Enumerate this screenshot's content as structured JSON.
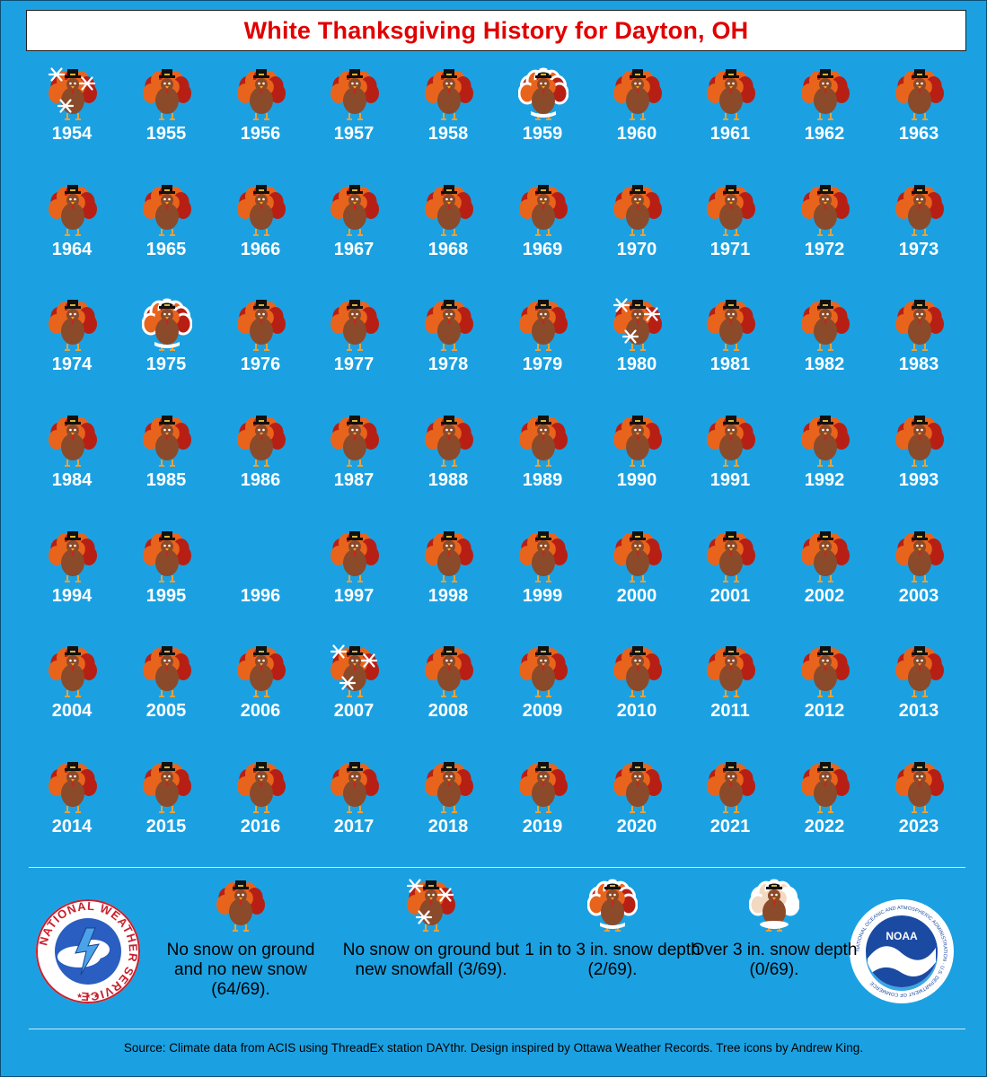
{
  "title": "White Thanksgiving History for Dayton, OH",
  "colors": {
    "background": "#1ba1e2",
    "title": "#e00000",
    "turkey_body": "#8b4a2a",
    "feather_red": "#b81f14",
    "feather_orange": "#e8641c",
    "snow_white": "#ffffff"
  },
  "chart_data": {
    "type": "table",
    "title": "White Thanksgiving History for Dayton, OH",
    "categories": {
      "none": "No snow on ground and no new snow",
      "new_snow": "No snow on ground but new snowfall",
      "depth_1_3": "1 in to 3 in. snow depth",
      "depth_over_3": "Over 3 in. snow depth"
    },
    "years": [
      {
        "year": "1954",
        "category": "new_snow"
      },
      {
        "year": "1955",
        "category": "none"
      },
      {
        "year": "1956",
        "category": "none"
      },
      {
        "year": "1957",
        "category": "none"
      },
      {
        "year": "1958",
        "category": "none"
      },
      {
        "year": "1959",
        "category": "depth_1_3"
      },
      {
        "year": "1960",
        "category": "none"
      },
      {
        "year": "1961",
        "category": "none"
      },
      {
        "year": "1962",
        "category": "none"
      },
      {
        "year": "1963",
        "category": "none"
      },
      {
        "year": "1964",
        "category": "none"
      },
      {
        "year": "1965",
        "category": "none"
      },
      {
        "year": "1966",
        "category": "none"
      },
      {
        "year": "1967",
        "category": "none"
      },
      {
        "year": "1968",
        "category": "none"
      },
      {
        "year": "1969",
        "category": "none"
      },
      {
        "year": "1970",
        "category": "none"
      },
      {
        "year": "1971",
        "category": "none"
      },
      {
        "year": "1972",
        "category": "none"
      },
      {
        "year": "1973",
        "category": "none"
      },
      {
        "year": "1974",
        "category": "none"
      },
      {
        "year": "1975",
        "category": "depth_1_3"
      },
      {
        "year": "1976",
        "category": "none"
      },
      {
        "year": "1977",
        "category": "none"
      },
      {
        "year": "1978",
        "category": "none"
      },
      {
        "year": "1979",
        "category": "none"
      },
      {
        "year": "1980",
        "category": "new_snow"
      },
      {
        "year": "1981",
        "category": "none"
      },
      {
        "year": "1982",
        "category": "none"
      },
      {
        "year": "1983",
        "category": "none"
      },
      {
        "year": "1984",
        "category": "none"
      },
      {
        "year": "1985",
        "category": "none"
      },
      {
        "year": "1986",
        "category": "none"
      },
      {
        "year": "1987",
        "category": "none"
      },
      {
        "year": "1988",
        "category": "none"
      },
      {
        "year": "1989",
        "category": "none"
      },
      {
        "year": "1990",
        "category": "none"
      },
      {
        "year": "1991",
        "category": "none"
      },
      {
        "year": "1992",
        "category": "none"
      },
      {
        "year": "1993",
        "category": "none"
      },
      {
        "year": "1994",
        "category": "none"
      },
      {
        "year": "1995",
        "category": "none"
      },
      {
        "year": "1996",
        "category": "missing"
      },
      {
        "year": "1997",
        "category": "none"
      },
      {
        "year": "1998",
        "category": "none"
      },
      {
        "year": "1999",
        "category": "none"
      },
      {
        "year": "2000",
        "category": "none"
      },
      {
        "year": "2001",
        "category": "none"
      },
      {
        "year": "2002",
        "category": "none"
      },
      {
        "year": "2003",
        "category": "none"
      },
      {
        "year": "2004",
        "category": "none"
      },
      {
        "year": "2005",
        "category": "none"
      },
      {
        "year": "2006",
        "category": "none"
      },
      {
        "year": "2007",
        "category": "new_snow"
      },
      {
        "year": "2008",
        "category": "none"
      },
      {
        "year": "2009",
        "category": "none"
      },
      {
        "year": "2010",
        "category": "none"
      },
      {
        "year": "2011",
        "category": "none"
      },
      {
        "year": "2012",
        "category": "none"
      },
      {
        "year": "2013",
        "category": "none"
      },
      {
        "year": "2014",
        "category": "none"
      },
      {
        "year": "2015",
        "category": "none"
      },
      {
        "year": "2016",
        "category": "none"
      },
      {
        "year": "2017",
        "category": "none"
      },
      {
        "year": "2018",
        "category": "none"
      },
      {
        "year": "2019",
        "category": "none"
      },
      {
        "year": "2020",
        "category": "none"
      },
      {
        "year": "2021",
        "category": "none"
      },
      {
        "year": "2022",
        "category": "none"
      },
      {
        "year": "2023",
        "category": "none"
      }
    ]
  },
  "legend": [
    {
      "icon": "turkey-icon",
      "category": "none",
      "label": "No snow on ground and no new snow (64/69)."
    },
    {
      "icon": "turkey-snowflake-icon",
      "category": "new_snow",
      "label": "No snow on ground but new snowfall (3/69)."
    },
    {
      "icon": "turkey-snow-outline-icon",
      "category": "depth_1_3",
      "label": "1 in to 3 in. snow depth (2/69)."
    },
    {
      "icon": "turkey-snow-covered-icon",
      "category": "depth_over_3",
      "label": "Over 3 in. snow depth (0/69)."
    }
  ],
  "logos": {
    "nws": {
      "icon": "nws-logo",
      "text": "NATIONAL WEATHER SERVICE"
    },
    "noaa": {
      "icon": "noaa-logo",
      "text": "NOAA",
      "ring_text": "NATIONAL OCEANIC AND ATMOSPHERIC ADMINISTRATION · U.S. DEPARTMENT OF COMMERCE"
    }
  },
  "source": "Source: Climate data from ACIS using ThreadEx station DAYthr. Design inspired by Ottawa Weather Records. Tree icons by Andrew King."
}
